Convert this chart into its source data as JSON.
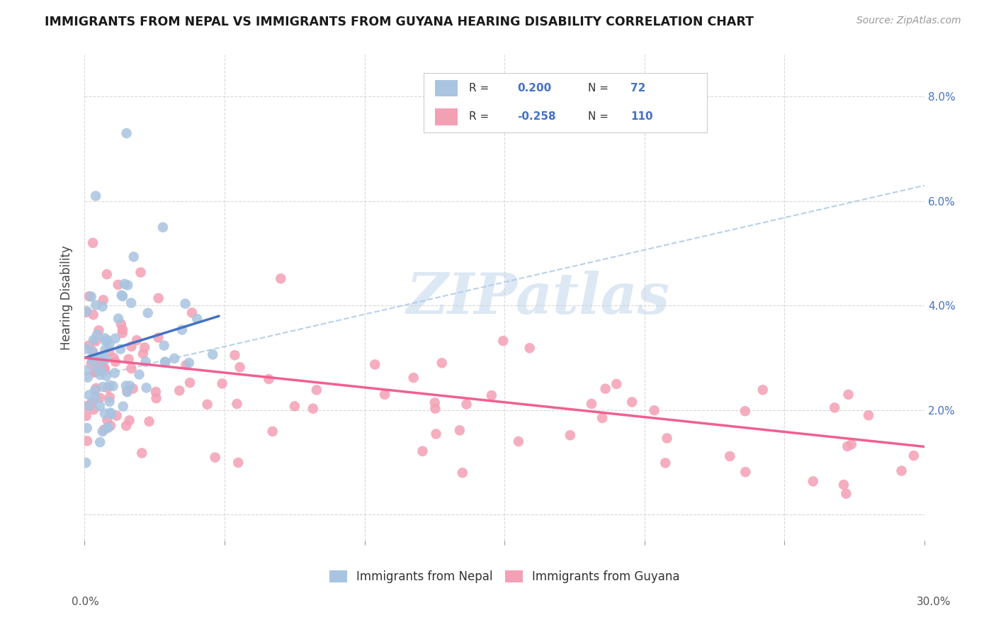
{
  "title": "IMMIGRANTS FROM NEPAL VS IMMIGRANTS FROM GUYANA HEARING DISABILITY CORRELATION CHART",
  "source": "Source: ZipAtlas.com",
  "ylabel": "Hearing Disability",
  "ytick_values": [
    0.0,
    0.02,
    0.04,
    0.06,
    0.08
  ],
  "ytick_labels": [
    "",
    "2.0%",
    "4.0%",
    "6.0%",
    "8.0%"
  ],
  "xlim": [
    0.0,
    0.3
  ],
  "ylim": [
    -0.005,
    0.088
  ],
  "nepal_color": "#a8c4e0",
  "guyana_color": "#f4a0b4",
  "nepal_line_color": "#4472c4",
  "guyana_line_color": "#f06090",
  "dashed_color": "#b0cce8",
  "right_tick_color": "#4472c4",
  "grid_color": "#d0d0d0",
  "watermark_color": "#dce8f4",
  "legend_text_color": "#4472c4",
  "legend_label_color": "#555555",
  "nepal_R": "0.200",
  "nepal_N": "72",
  "guyana_R": "-0.258",
  "guyana_N": "110",
  "nepal_trend_x0": 0.0,
  "nepal_trend_y0": 0.03,
  "nepal_trend_x1": 0.048,
  "nepal_trend_y1": 0.038,
  "dashed_trend_x0": 0.0,
  "dashed_trend_y0": 0.026,
  "dashed_trend_x1": 0.3,
  "dashed_trend_y1": 0.063,
  "guyana_trend_x0": 0.0,
  "guyana_trend_y0": 0.03,
  "guyana_trend_x1": 0.3,
  "guyana_trend_y1": 0.013
}
